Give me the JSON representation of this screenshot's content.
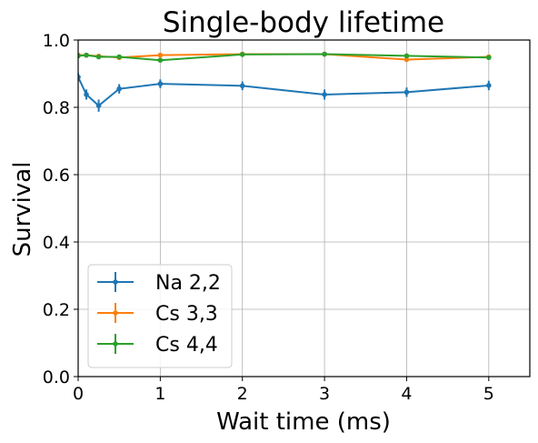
{
  "chart_data": {
    "type": "line",
    "title": "Single-body lifetime",
    "xlabel": "Wait time (ms)",
    "ylabel": "Survival",
    "xlim": [
      0,
      5.5
    ],
    "ylim": [
      0,
      1.0
    ],
    "xticks": [
      0,
      1,
      2,
      3,
      4,
      5
    ],
    "yticks": [
      0.0,
      0.2,
      0.4,
      0.6,
      0.8,
      1.0
    ],
    "xtick_labels": [
      "0",
      "1",
      "2",
      "3",
      "4",
      "5"
    ],
    "ytick_labels": [
      "0.0",
      "0.2",
      "0.4",
      "0.6",
      "0.8",
      "1.0"
    ],
    "grid": true,
    "legend_position": "lower-left",
    "series": [
      {
        "name": "Na 2,2",
        "color": "#1f77b4",
        "x": [
          0,
          0.1,
          0.25,
          0.5,
          1,
          2,
          3,
          4,
          5
        ],
        "y": [
          0.89,
          0.838,
          0.805,
          0.855,
          0.87,
          0.864,
          0.838,
          0.845,
          0.865
        ],
        "yerr": [
          0.012,
          0.015,
          0.018,
          0.014,
          0.013,
          0.013,
          0.015,
          0.014,
          0.014
        ]
      },
      {
        "name": "Cs 3,3",
        "color": "#ff7f0e",
        "x": [
          0,
          0.1,
          0.25,
          0.5,
          1,
          2,
          3,
          4,
          5
        ],
        "y": [
          0.955,
          0.955,
          0.952,
          0.948,
          0.955,
          0.958,
          0.958,
          0.942,
          0.95
        ],
        "yerr": [
          0.005,
          0.005,
          0.005,
          0.006,
          0.005,
          0.005,
          0.005,
          0.006,
          0.005
        ]
      },
      {
        "name": "Cs 4,4",
        "color": "#2ca02c",
        "x": [
          0,
          0.1,
          0.25,
          0.5,
          1,
          2,
          3,
          4,
          5
        ],
        "y": [
          0.953,
          0.955,
          0.95,
          0.95,
          0.94,
          0.957,
          0.958,
          0.953,
          0.948
        ],
        "yerr": [
          0.005,
          0.005,
          0.005,
          0.005,
          0.006,
          0.005,
          0.005,
          0.005,
          0.005
        ]
      }
    ]
  }
}
